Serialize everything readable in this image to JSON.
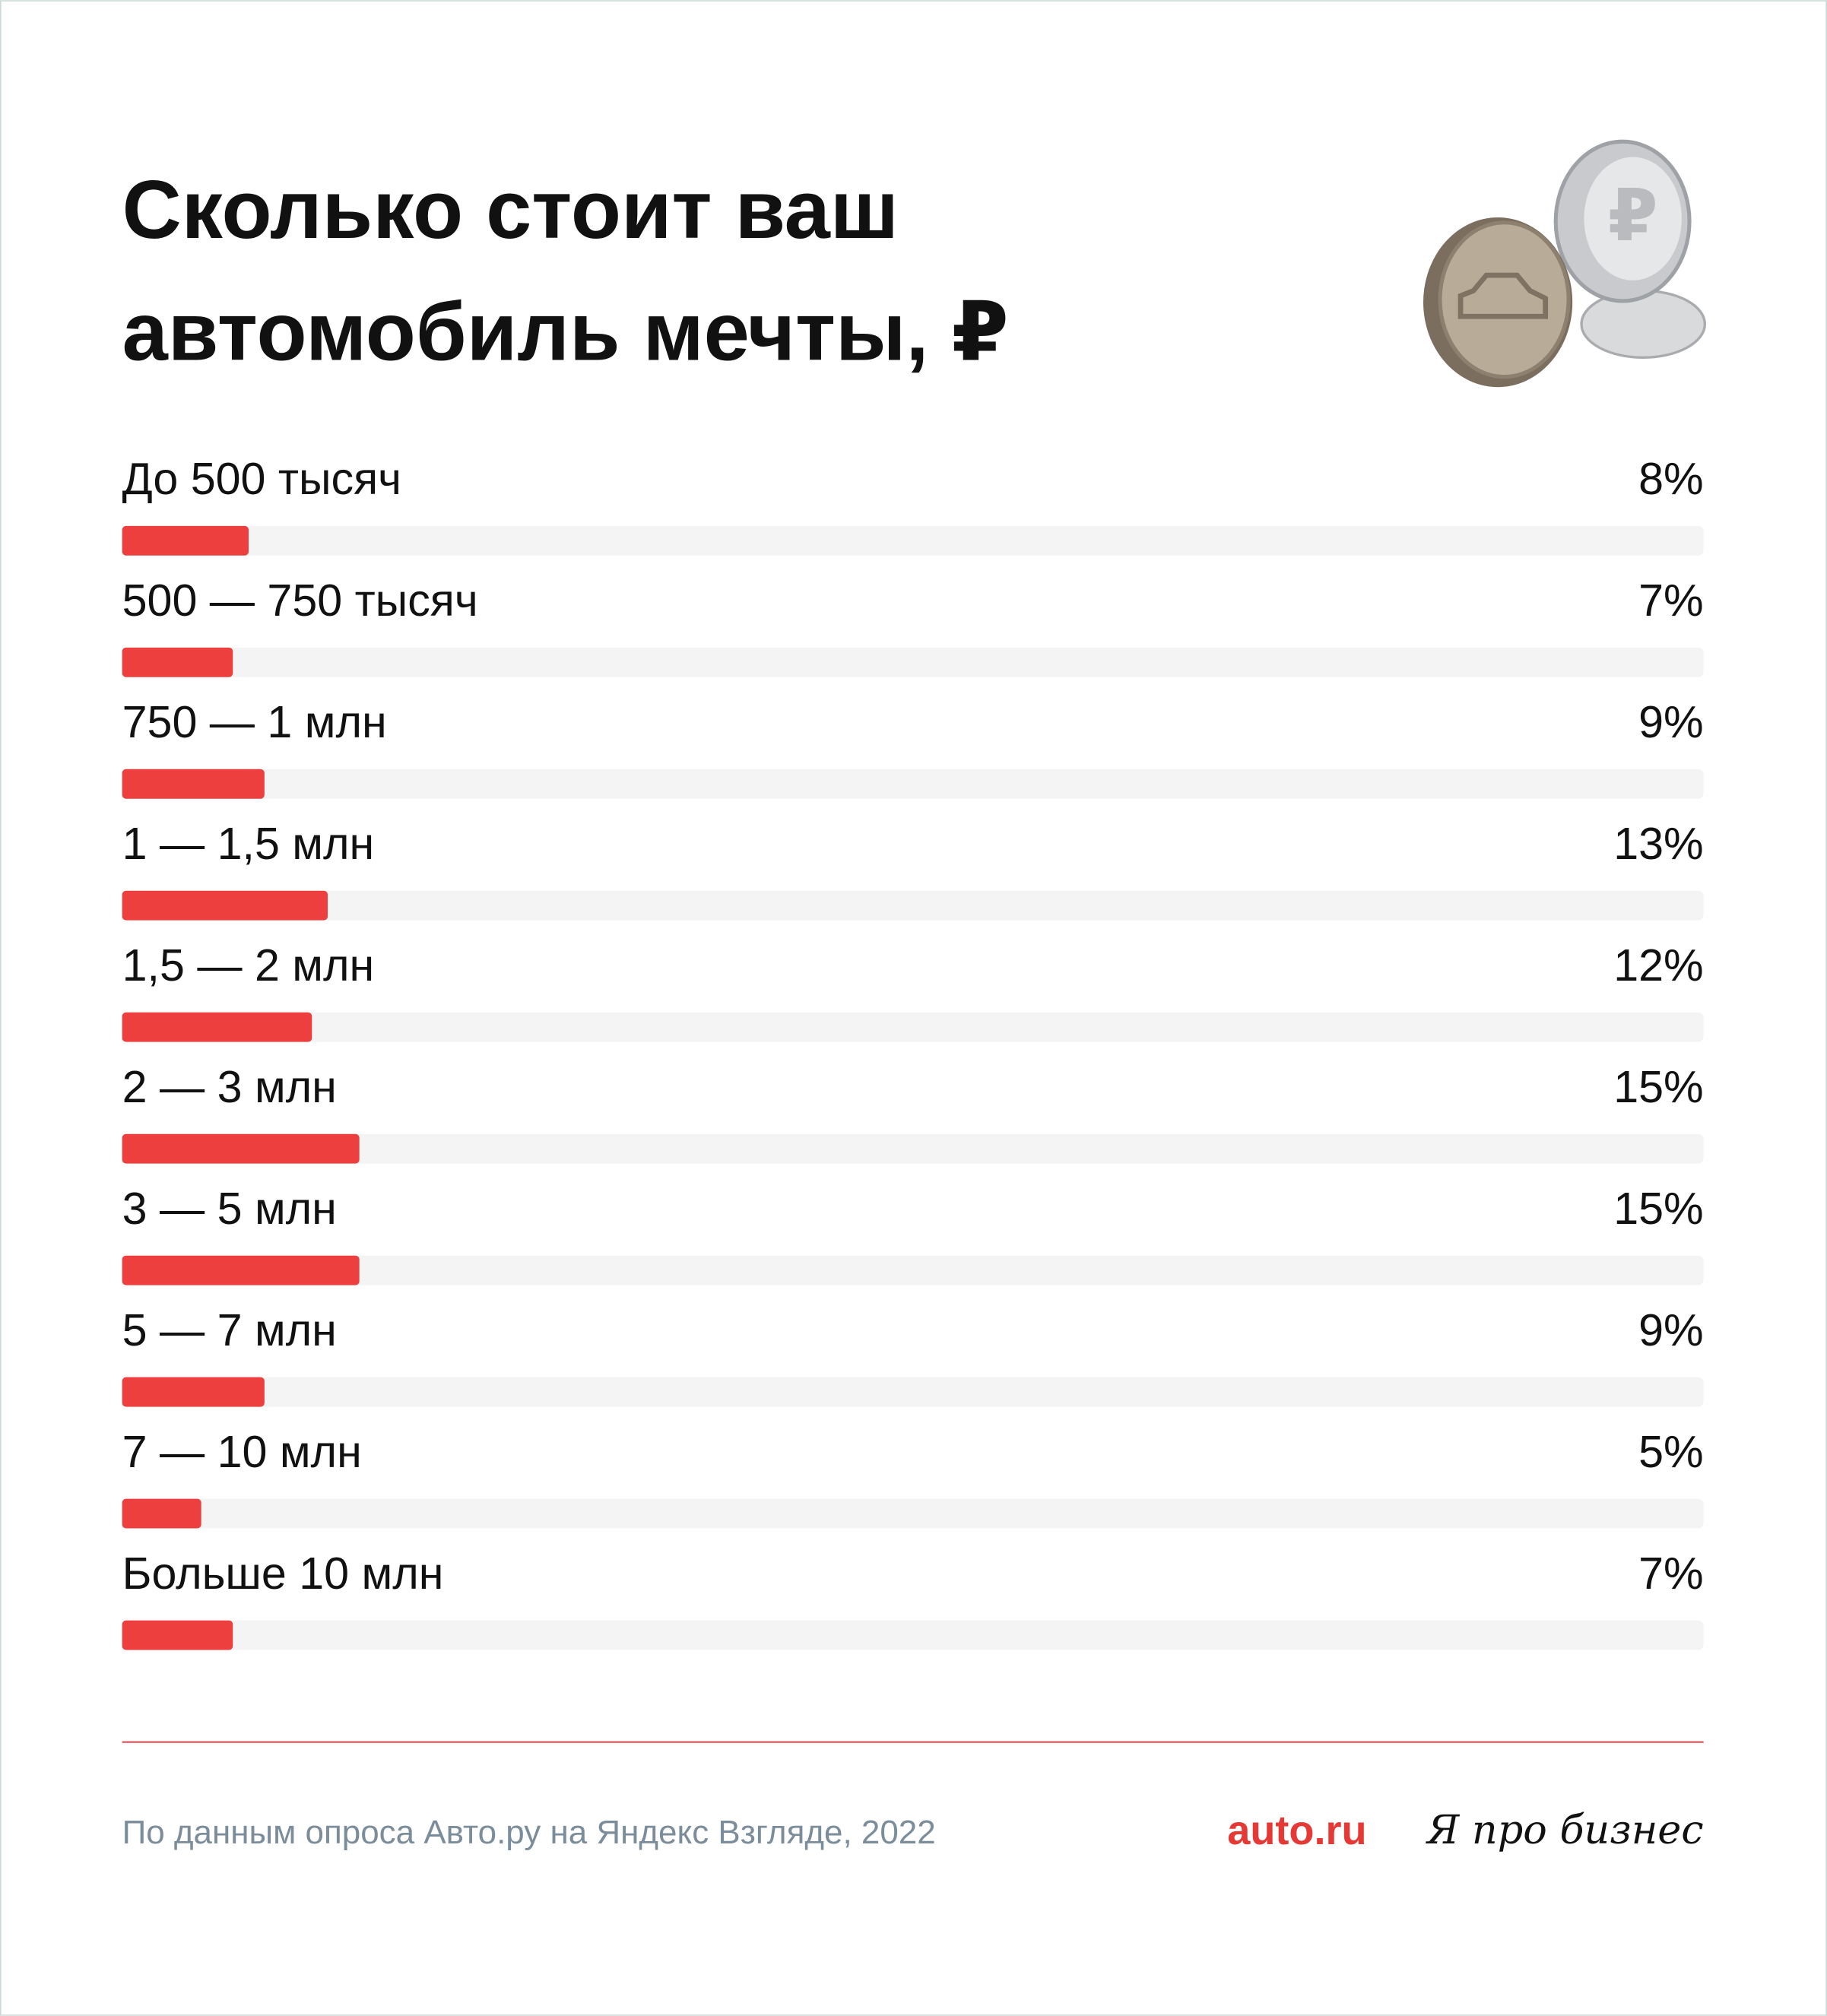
{
  "chart_data": {
    "type": "bar",
    "orientation": "horizontal",
    "title": [
      "Сколько стоит ваш",
      "автомобиль мечты, ₽"
    ],
    "categories": [
      "До 500 тысяч",
      "500 — 750 тысяч",
      "750 — 1 млн",
      "1 — 1,5 млн",
      "1,5 — 2 млн",
      "2 — 3 млн",
      "3 — 5 млн",
      "5 — 7 млн",
      "7 — 10 млн",
      "Больше 10 млн"
    ],
    "values": [
      8,
      7,
      9,
      13,
      12,
      15,
      15,
      9,
      5,
      7
    ],
    "value_labels": [
      "8%",
      "7%",
      "9%",
      "13%",
      "12%",
      "15%",
      "15%",
      "9%",
      "5%",
      "7%"
    ],
    "color": "#ee3f3f",
    "track_color": "#f4f4f5",
    "xlim": [
      0,
      100
    ],
    "source": "По данным опроса Авто.ру на Яндекс Взгляде, 2022",
    "logos": [
      "auto.ru",
      "Я про бизнес"
    ]
  }
}
